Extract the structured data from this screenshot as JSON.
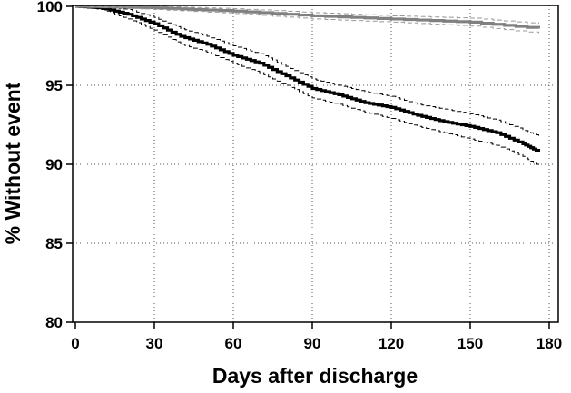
{
  "chart_data": {
    "type": "line",
    "xlabel": "Days after discharge",
    "ylabel": "% Without event",
    "xlim": [
      0,
      180
    ],
    "ylim": [
      80,
      100
    ],
    "xticks": [
      0,
      30,
      60,
      90,
      120,
      150,
      180
    ],
    "yticks": [
      80,
      85,
      90,
      95,
      100
    ],
    "grid": true,
    "series": [
      {
        "color": "#000000",
        "style": "solid-thick",
        "x": [
          0,
          10,
          20,
          30,
          40,
          50,
          60,
          70,
          80,
          90,
          100,
          110,
          120,
          130,
          140,
          150,
          160,
          170,
          176
        ],
        "values": [
          100,
          99.9,
          99.5,
          98.9,
          98.1,
          97.6,
          96.9,
          96.4,
          95.6,
          94.8,
          94.4,
          93.9,
          93.6,
          93.1,
          92.7,
          92.4,
          92.0,
          91.3,
          90.8
        ]
      },
      {
        "color": "#000000",
        "style": "dashed",
        "x": [
          0,
          10,
          20,
          30,
          40,
          50,
          60,
          70,
          80,
          90,
          100,
          110,
          120,
          130,
          140,
          150,
          160,
          170,
          176
        ],
        "values": [
          100,
          100,
          99.8,
          99.3,
          98.6,
          98.1,
          97.5,
          97.0,
          96.2,
          95.4,
          95.0,
          94.6,
          94.3,
          93.8,
          93.5,
          93.2,
          92.8,
          92.2,
          91.8
        ]
      },
      {
        "color": "#000000",
        "style": "dashed",
        "x": [
          0,
          10,
          20,
          30,
          40,
          50,
          60,
          70,
          80,
          90,
          100,
          110,
          120,
          130,
          140,
          150,
          160,
          170,
          176
        ],
        "values": [
          100,
          99.8,
          99.2,
          98.5,
          97.6,
          97.1,
          96.4,
          95.8,
          95.0,
          94.2,
          93.8,
          93.3,
          92.9,
          92.4,
          92.0,
          91.6,
          91.2,
          90.5,
          89.9
        ]
      },
      {
        "color": "#808080",
        "style": "solid-thick",
        "x": [
          0,
          30,
          60,
          90,
          120,
          150,
          176
        ],
        "values": [
          100,
          99.9,
          99.7,
          99.4,
          99.2,
          99.0,
          98.6
        ]
      },
      {
        "color": "#999999",
        "style": "dashed",
        "x": [
          0,
          30,
          60,
          90,
          120,
          150,
          176
        ],
        "values": [
          100,
          100,
          99.85,
          99.6,
          99.4,
          99.25,
          98.9
        ]
      },
      {
        "color": "#999999",
        "style": "dashed",
        "x": [
          0,
          30,
          60,
          90,
          120,
          150,
          176
        ],
        "values": [
          100,
          99.8,
          99.55,
          99.2,
          99.0,
          98.75,
          98.3
        ]
      }
    ]
  }
}
